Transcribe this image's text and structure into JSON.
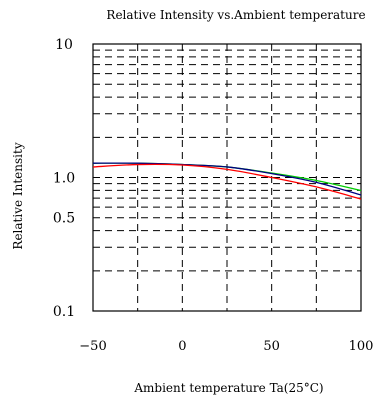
{
  "chart_data": {
    "type": "line",
    "title": "Relative Intensity vs.Ambient temperature",
    "xlabel": "Ambient temperature Ta(25°C)",
    "ylabel": "Relative Intensity",
    "xlim": [
      -50,
      100
    ],
    "ylim": [
      0.1,
      10
    ],
    "y_scale": "log",
    "grid": true,
    "x_ticks": [
      {
        "value": -50,
        "label": "−50"
      },
      {
        "value": 0,
        "label": "0"
      },
      {
        "value": 50,
        "label": "50"
      },
      {
        "value": 100,
        "label": "100"
      }
    ],
    "y_ticks": [
      {
        "value": 10,
        "label": "10"
      },
      {
        "value": 1,
        "label": "1.0"
      },
      {
        "value": 0.5,
        "label": "0.5"
      },
      {
        "value": 0.1,
        "label": "0.1"
      }
    ],
    "series": [
      {
        "color": "#ff0000",
        "x": [
          -50,
          -25,
          0,
          25,
          50,
          75,
          100
        ],
        "y": [
          1.2,
          1.25,
          1.24,
          1.15,
          1.0,
          0.85,
          0.69
        ]
      },
      {
        "color": "#000080",
        "x": [
          -50,
          -25,
          0,
          25,
          50,
          75,
          100
        ],
        "y": [
          1.28,
          1.28,
          1.25,
          1.2,
          1.07,
          0.92,
          0.74
        ]
      },
      {
        "color": "#00cc00",
        "x": [
          -50,
          -25,
          0,
          25,
          50,
          75,
          100
        ],
        "y": [
          1.28,
          1.28,
          1.25,
          1.2,
          1.08,
          0.95,
          0.8
        ]
      }
    ]
  }
}
